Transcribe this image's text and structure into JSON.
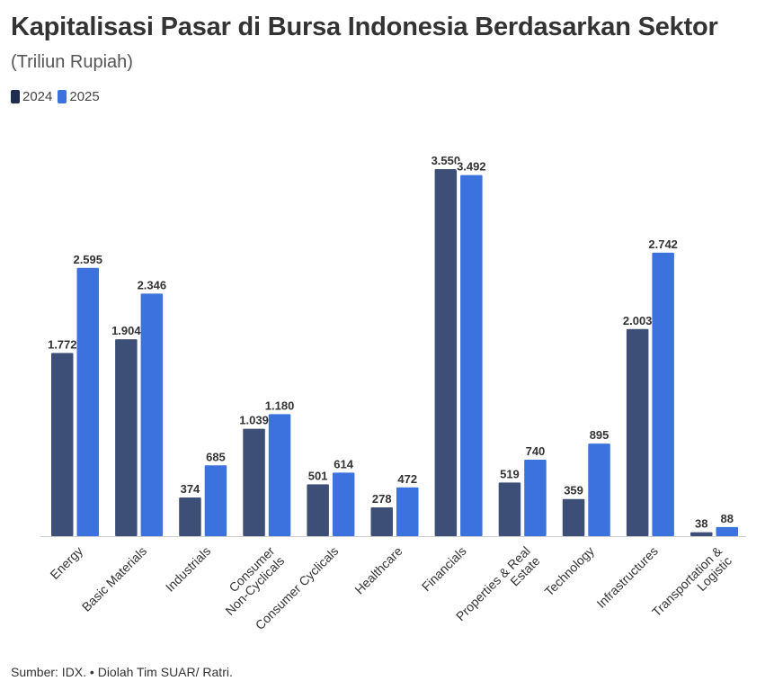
{
  "chart_data": {
    "type": "bar",
    "title": "Kapitalisasi Pasar di Bursa Indonesia Berdasarkan Sektor",
    "subtitle": "(Triliun Rupiah)",
    "categories": [
      "Energy",
      "Basic Materials",
      "Industrials",
      "Consumer Non-Cyclicals",
      "Consumer Cyclicals",
      "Healthcare",
      "Financials",
      "Properties & Real Estate",
      "Technology",
      "Infrastructures",
      "Transportation & Logistic"
    ],
    "category_lines": [
      [
        "Energy"
      ],
      [
        "Basic Materials"
      ],
      [
        "Industrials"
      ],
      [
        "Consumer",
        "Non-Cyclicals"
      ],
      [
        "Consumer Cyclicals"
      ],
      [
        "Healthcare"
      ],
      [
        "Financials"
      ],
      [
        "Properties & Real",
        "Estate"
      ],
      [
        "Technology"
      ],
      [
        "Infrastructures"
      ],
      [
        "Transportation &",
        "Logistic"
      ]
    ],
    "series": [
      {
        "name": "2024",
        "color": "#3d4f77",
        "values": [
          1772,
          1904,
          374,
          1039,
          501,
          278,
          3550,
          519,
          359,
          2003,
          38
        ],
        "labels": [
          "1.772",
          "1.904",
          "374",
          "1.039",
          "501",
          "278",
          "3.550",
          "519",
          "359",
          "2.003",
          "38"
        ]
      },
      {
        "name": "2025",
        "color": "#3b72dd",
        "values": [
          2595,
          2346,
          685,
          1180,
          614,
          472,
          3492,
          740,
          895,
          2742,
          88
        ],
        "labels": [
          "2.595",
          "2.346",
          "685",
          "1.180",
          "614",
          "472",
          "3.492",
          "740",
          "895",
          "2.742",
          "88"
        ]
      }
    ],
    "ylim": [
      0,
      3550
    ],
    "grid": false,
    "legend": "top-left"
  },
  "legend": {
    "color_2024": "#1f2d52",
    "color_2025": "#3b72dd"
  },
  "footer": {
    "source": "Sumber: IDX. • Diolah Tim SUAR/ Ratri."
  }
}
